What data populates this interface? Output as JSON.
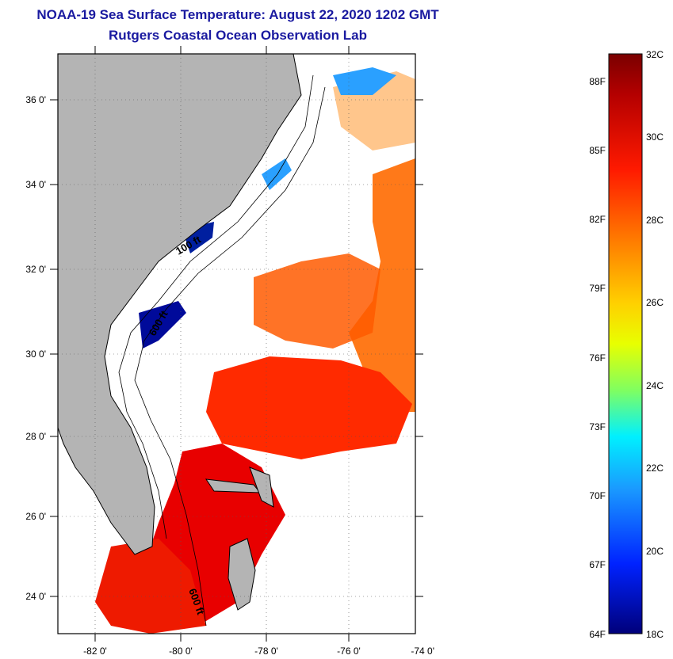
{
  "header": {
    "title": "NOAA-19 Sea Surface Temperature:  August 22, 2020 1202 GMT",
    "subtitle": "Rutgers Coastal Ocean Observation Lab"
  },
  "map": {
    "lon_labels": [
      "-82 0'",
      "-80 0'",
      "-78 0'",
      "-76 0'",
      "-74 0'"
    ],
    "lat_labels": [
      "36 0'",
      "34 0'",
      "32 0'",
      "30 0'",
      "28 0'",
      "26 0'",
      "24 0'"
    ],
    "contour_labels": [
      "100 ft",
      "600 ft",
      "600 ft"
    ],
    "colors": {
      "land": "#b4b4b4",
      "cloud": "#ffffff",
      "warm": "#ff2a00",
      "orange": "#ff6a00",
      "hot": "#e80000",
      "cold": "#000a9a",
      "mid": "#2aa0ff"
    }
  },
  "colorbar": {
    "f_labels": [
      "88F",
      "85F",
      "82F",
      "79F",
      "76F",
      "73F",
      "70F",
      "67F",
      "64F"
    ],
    "c_labels": [
      "32C",
      "30C",
      "28C",
      "26C",
      "24C",
      "22C",
      "20C",
      "18C"
    ],
    "range_c": [
      18,
      32
    ]
  }
}
